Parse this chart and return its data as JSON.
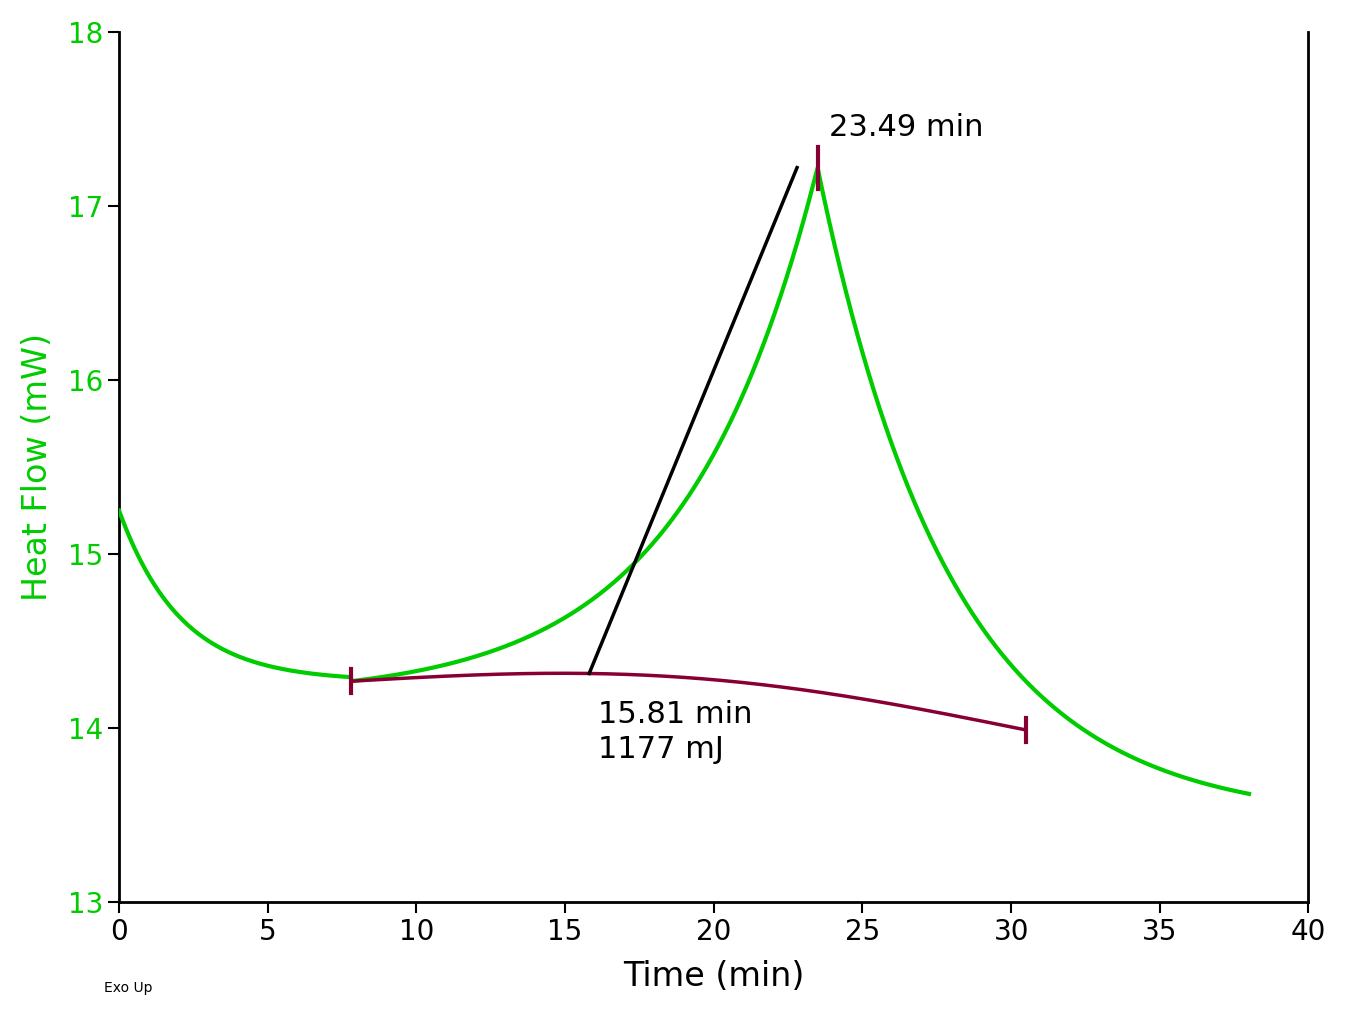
{
  "xlabel": "Time (min)",
  "ylabel": "Heat Flow (mW)",
  "xlim": [
    0,
    40
  ],
  "ylim": [
    13,
    18
  ],
  "xticks": [
    0,
    5,
    10,
    15,
    20,
    25,
    30,
    35,
    40
  ],
  "yticks": [
    13,
    14,
    15,
    16,
    17,
    18
  ],
  "exo_up_label": "Exo Up",
  "curve_color": "#00cc00",
  "baseline_color": "#880033",
  "annotation_line_color": "#000000",
  "tick_marker_color": "#880033",
  "peak_x": 23.49,
  "peak_y": 17.22,
  "peak_label": "23.49 min",
  "onset_label1": "15.81 min",
  "onset_label2": "1177 mJ",
  "baseline_x1": 7.8,
  "baseline_y1": 14.27,
  "baseline_x2": 30.5,
  "baseline_y2": 13.99,
  "label_fontsize": 22,
  "tick_fontsize": 20,
  "axis_label_fontsize": 24
}
